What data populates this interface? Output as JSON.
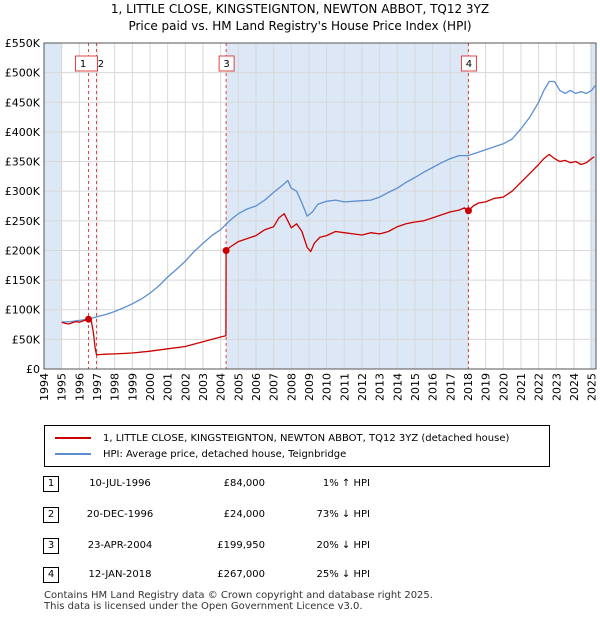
{
  "title_line1": "1, LITTLE CLOSE, KINGSTEIGNTON, NEWTON ABBOT, TQ12 3YZ",
  "title_line2": "Price paid vs. HM Land Registry's House Price Index (HPI)",
  "colors": {
    "property": "#cc0000",
    "hpi": "#5b8fd0",
    "shade": "#dde8f7",
    "grid": "#d8d8d8",
    "vline": "#dd4444"
  },
  "chart_data": {
    "type": "line",
    "xlabel": "",
    "ylabel": "",
    "xlim": [
      1994.0,
      2025.25
    ],
    "ylim": [
      0,
      550000
    ],
    "y_ticks": [
      0,
      50000,
      100000,
      150000,
      200000,
      250000,
      300000,
      350000,
      400000,
      450000,
      500000,
      550000
    ],
    "y_tick_labels": [
      "£0",
      "£50K",
      "£100K",
      "£150K",
      "£200K",
      "£250K",
      "£300K",
      "£350K",
      "£400K",
      "£450K",
      "£500K",
      "£550K"
    ],
    "x_ticks": [
      1994,
      1995,
      1996,
      1997,
      1998,
      1999,
      2000,
      2001,
      2002,
      2003,
      2004,
      2005,
      2006,
      2007,
      2008,
      2009,
      2010,
      2011,
      2012,
      2013,
      2014,
      2015,
      2016,
      2017,
      2018,
      2019,
      2020,
      2021,
      2022,
      2023,
      2024,
      2025
    ],
    "x_tick_labels": [
      "1994",
      "1995",
      "1996",
      "1997",
      "1998",
      "1999",
      "2000",
      "2001",
      "2002",
      "2003",
      "2004",
      "2005",
      "2006",
      "2007",
      "2008",
      "2009",
      "2010",
      "2011",
      "2012",
      "2013",
      "2014",
      "2015",
      "2016",
      "2017",
      "2018",
      "2019",
      "2020",
      "2021",
      "2022",
      "2023",
      "2024",
      "2025"
    ],
    "shaded_regions": [
      [
        1994.0,
        1995.0
      ],
      [
        2004.31,
        2018.03
      ],
      [
        2024.9,
        2025.25
      ]
    ],
    "series": [
      {
        "name": "1, LITTLE CLOSE, KINGSTEIGNTON, NEWTON ABBOT, TQ12 3YZ (detached house)",
        "color": "#cc0000",
        "x": [
          1995.0,
          1995.2,
          1995.4,
          1995.6,
          1995.8,
          1996.0,
          1996.2,
          1996.4,
          1996.52,
          1996.65,
          1996.8,
          1996.9,
          1996.97,
          1997.2,
          1997.5,
          1998.0,
          1999.0,
          2000.0,
          2001.0,
          2002.0,
          2002.5,
          2003.0,
          2003.5,
          2004.0,
          2004.3,
          2004.31,
          2004.5,
          2005.0,
          2005.5,
          2006.0,
          2006.5,
          2007.0,
          2007.3,
          2007.6,
          2007.8,
          2008.0,
          2008.3,
          2008.6,
          2008.9,
          2009.1,
          2009.3,
          2009.6,
          2010.0,
          2010.5,
          2011.0,
          2011.5,
          2012.0,
          2012.5,
          2013.0,
          2013.5,
          2014.0,
          2014.5,
          2015.0,
          2015.5,
          2016.0,
          2016.5,
          2017.0,
          2017.5,
          2017.8,
          2018.03,
          2018.3,
          2018.6,
          2019.0,
          2019.5,
          2020.0,
          2020.5,
          2021.0,
          2021.5,
          2022.0,
          2022.3,
          2022.6,
          2022.9,
          2023.2,
          2023.5,
          2023.8,
          2024.1,
          2024.4,
          2024.7,
          2025.0,
          2025.15
        ],
        "values": [
          79000,
          77000,
          76000,
          78000,
          80000,
          79000,
          81000,
          83000,
          84000,
          86000,
          60000,
          35000,
          24000,
          24500,
          25000,
          25500,
          27000,
          30000,
          34000,
          38000,
          42000,
          46000,
          50000,
          54000,
          56000,
          199950,
          205000,
          215000,
          220000,
          225000,
          235000,
          240000,
          255000,
          262000,
          250000,
          238000,
          245000,
          232000,
          205000,
          198000,
          212000,
          222000,
          225000,
          232000,
          230000,
          228000,
          226000,
          230000,
          228000,
          232000,
          240000,
          245000,
          248000,
          250000,
          255000,
          260000,
          265000,
          268000,
          272000,
          267000,
          275000,
          280000,
          282000,
          288000,
          290000,
          300000,
          315000,
          330000,
          345000,
          355000,
          362000,
          355000,
          350000,
          352000,
          348000,
          350000,
          345000,
          348000,
          355000,
          358000
        ]
      },
      {
        "name": "HPI: Average price, detached house, Teignbridge",
        "color": "#5b8fd0",
        "x": [
          1995.0,
          1995.5,
          1996.0,
          1996.5,
          1997.0,
          1997.5,
          1998.0,
          1998.5,
          1999.0,
          1999.5,
          2000.0,
          2000.5,
          2001.0,
          2001.5,
          2002.0,
          2002.5,
          2003.0,
          2003.5,
          2004.0,
          2004.5,
          2005.0,
          2005.5,
          2006.0,
          2006.5,
          2007.0,
          2007.5,
          2007.8,
          2008.0,
          2008.3,
          2008.6,
          2008.9,
          2009.2,
          2009.5,
          2010.0,
          2010.5,
          2011.0,
          2011.5,
          2012.0,
          2012.5,
          2013.0,
          2013.5,
          2014.0,
          2014.5,
          2015.0,
          2015.5,
          2016.0,
          2016.5,
          2017.0,
          2017.5,
          2018.0,
          2018.5,
          2019.0,
          2019.5,
          2020.0,
          2020.5,
          2021.0,
          2021.5,
          2022.0,
          2022.3,
          2022.6,
          2022.9,
          2023.2,
          2023.5,
          2023.8,
          2024.1,
          2024.4,
          2024.7,
          2025.0,
          2025.2
        ],
        "values": [
          79000,
          80000,
          82000,
          84000,
          88000,
          92000,
          97000,
          103000,
          110000,
          118000,
          128000,
          140000,
          155000,
          168000,
          182000,
          198000,
          212000,
          225000,
          235000,
          250000,
          262000,
          270000,
          275000,
          285000,
          298000,
          310000,
          318000,
          305000,
          300000,
          280000,
          258000,
          265000,
          278000,
          283000,
          285000,
          282000,
          283000,
          284000,
          285000,
          290000,
          298000,
          305000,
          315000,
          323000,
          332000,
          340000,
          348000,
          355000,
          360000,
          360000,
          365000,
          370000,
          375000,
          380000,
          388000,
          405000,
          425000,
          450000,
          470000,
          485000,
          485000,
          470000,
          465000,
          470000,
          465000,
          468000,
          465000,
          470000,
          478000
        ]
      }
    ],
    "markers": [
      {
        "label": "1",
        "x": 1996.52,
        "y": 84000,
        "draw_point": true
      },
      {
        "label": "2",
        "x": 1996.97,
        "y": 24000,
        "draw_point": false
      },
      {
        "label": "3",
        "x": 2004.31,
        "y": 199950,
        "draw_point": true
      },
      {
        "label": "4",
        "x": 2018.03,
        "y": 267000,
        "draw_point": true
      }
    ]
  },
  "legend": {
    "property_label": "1, LITTLE CLOSE, KINGSTEIGNTON, NEWTON ABBOT, TQ12 3YZ (detached house)",
    "hpi_label": "HPI: Average price, detached house, Teignbridge"
  },
  "transactions": [
    {
      "num": "1",
      "date": "10-JUL-1996",
      "price": "£84,000",
      "hpi": "1% ↑ HPI"
    },
    {
      "num": "2",
      "date": "20-DEC-1996",
      "price": "£24,000",
      "hpi": "73% ↓ HPI"
    },
    {
      "num": "3",
      "date": "23-APR-2004",
      "price": "£199,950",
      "hpi": "20% ↓ HPI"
    },
    {
      "num": "4",
      "date": "12-JAN-2018",
      "price": "£267,000",
      "hpi": "25% ↓ HPI"
    }
  ],
  "footer_line1": "Contains HM Land Registry data © Crown copyright and database right 2025.",
  "footer_line2": "This data is licensed under the Open Government Licence v3.0."
}
